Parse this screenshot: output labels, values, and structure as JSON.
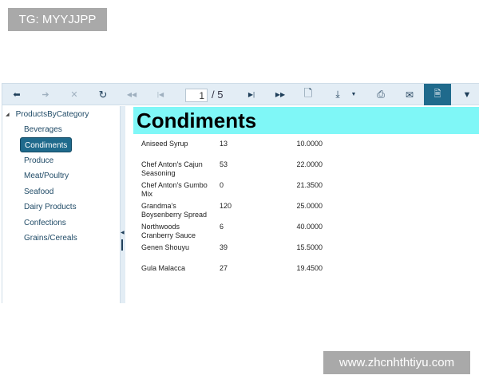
{
  "watermarks": {
    "top_left": "TG: MYYJJPP",
    "bottom_right": "www.zhcnhthtiyu.com"
  },
  "toolbar": {
    "current_page": "1",
    "page_total": "/ 5"
  },
  "tree": {
    "root": "ProductsByCategory",
    "items": [
      {
        "label": "Beverages"
      },
      {
        "label": "Condiments",
        "selected": true
      },
      {
        "label": "Produce"
      },
      {
        "label": "Meat/Poultry"
      },
      {
        "label": "Seafood"
      },
      {
        "label": "Dairy Products"
      },
      {
        "label": "Confections"
      },
      {
        "label": "Grains/Cereals"
      }
    ]
  },
  "report": {
    "title": "Condiments",
    "rows": [
      {
        "name": "Aniseed Syrup",
        "qty": "13",
        "price": "10.0000"
      },
      {
        "name": "Chef Anton's Cajun Seasoning",
        "qty": "53",
        "price": "22.0000"
      },
      {
        "name": "Chef Anton's Gumbo Mix",
        "qty": "0",
        "price": "21.3500"
      },
      {
        "name": "Grandma's Boysenberry Spread",
        "qty": "120",
        "price": "25.0000"
      },
      {
        "name": "Northwoods Cranberry Sauce",
        "qty": "6",
        "price": "40.0000"
      },
      {
        "name": "Genen Shouyu",
        "qty": "39",
        "price": "15.5000"
      },
      {
        "name": "Gula Malacca",
        "qty": "27",
        "price": "19.4500"
      }
    ]
  },
  "colors": {
    "accent": "#1f6a8c",
    "title_bg": "#7ff7f7",
    "toolbar_bg": "#e3edf5"
  }
}
